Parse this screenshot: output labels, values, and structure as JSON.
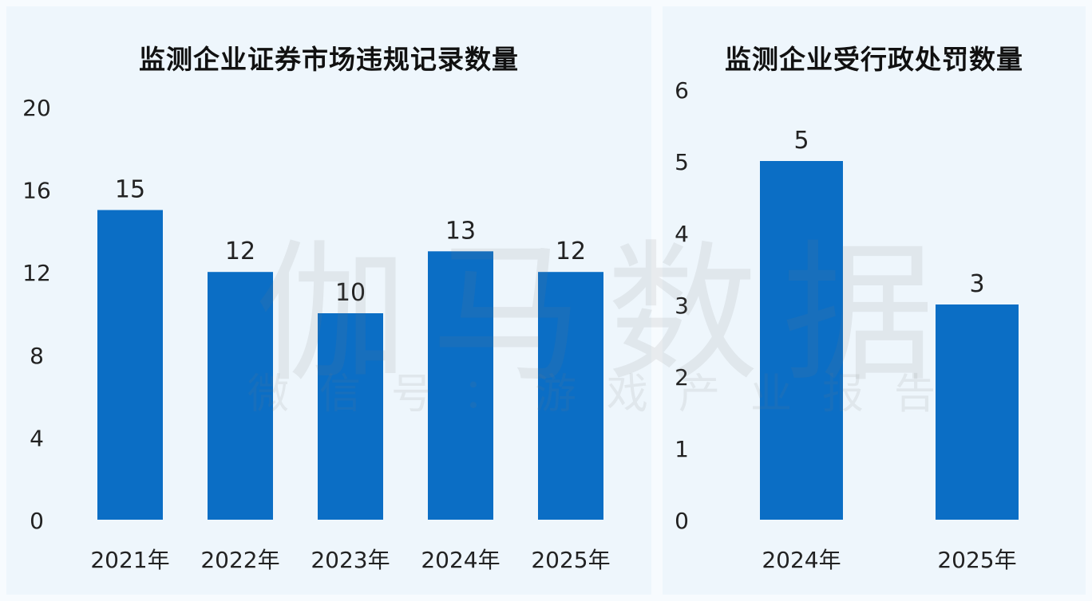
{
  "charts": {
    "left_title": "监测企业证券市场违规记录数量",
    "right_title": "监测企业受行政处罚数量"
  },
  "watermark": {
    "main": "伽马数据",
    "sub": "微信号：游戏产业报告"
  },
  "colors": {
    "bar": "#0b6ec5",
    "panel_bg": "#eef6fc"
  },
  "chart_data": [
    {
      "type": "bar",
      "title": "监测企业证券市场违规记录数量",
      "categories": [
        "2021年",
        "2022年",
        "2023年",
        "2024年",
        "2025年"
      ],
      "values": [
        15,
        12,
        10,
        13,
        12
      ],
      "yticks": [
        0,
        4,
        8,
        12,
        16,
        20
      ],
      "ylim": [
        0,
        20
      ],
      "xlabel": "",
      "ylabel": "",
      "grid": false
    },
    {
      "type": "bar",
      "title": "监测企业受行政处罚数量",
      "categories": [
        "2024年",
        "2025年"
      ],
      "values": [
        5,
        3
      ],
      "yticks": [
        0,
        1,
        2,
        3,
        4,
        5,
        6
      ],
      "ylim": [
        0,
        6
      ],
      "xlabel": "",
      "ylabel": "",
      "grid": false
    }
  ]
}
